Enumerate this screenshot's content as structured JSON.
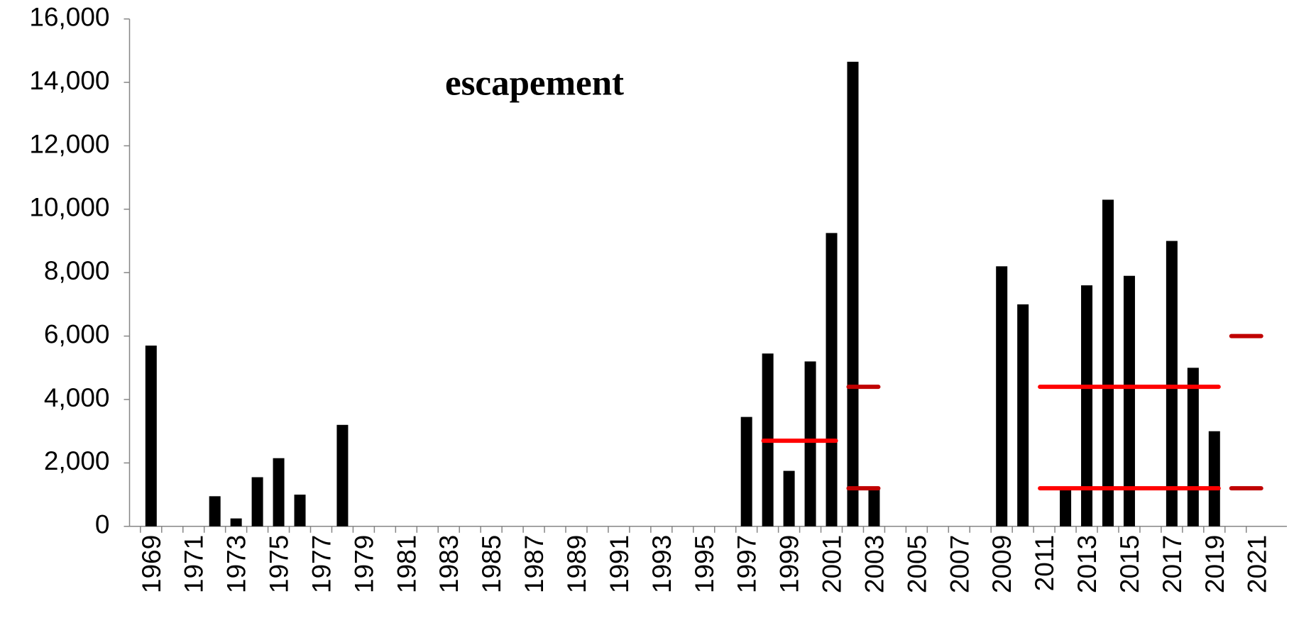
{
  "chart_data": {
    "type": "bar",
    "annotation": "escapement",
    "categories": [
      "1969",
      null,
      "1971",
      null,
      "1973",
      null,
      "1975",
      null,
      "1977",
      null,
      "1979",
      null,
      "1981",
      null,
      "1983",
      null,
      "1985",
      null,
      "1987",
      null,
      "1989",
      null,
      "1991",
      null,
      "1993",
      null,
      "1995",
      null,
      "1997",
      null,
      "1999",
      null,
      "2001",
      null,
      "2003",
      null,
      "2005",
      null,
      "2007",
      null,
      "2009",
      null,
      "2011",
      null,
      "2013",
      null,
      "2015",
      null,
      "2017",
      null,
      "2019",
      null,
      "2021"
    ],
    "values": [
      5700,
      null,
      null,
      950,
      250,
      1550,
      2150,
      1000,
      null,
      3200,
      null,
      null,
      null,
      null,
      null,
      null,
      null,
      null,
      null,
      null,
      null,
      null,
      null,
      null,
      null,
      null,
      null,
      null,
      3450,
      5450,
      1750,
      5200,
      9250,
      14650,
      1250,
      null,
      null,
      null,
      null,
      null,
      8200,
      7000,
      null,
      1200,
      7600,
      10300,
      7900,
      null,
      9000,
      5000,
      3000,
      null,
      null
    ],
    "color": "#000000",
    "goal_lines": [
      {
        "x_start": 1998,
        "x_end": 2001,
        "value": 2700,
        "color": "#ff0000"
      },
      {
        "x_start": 2002,
        "x_end": 2003,
        "value": 4400,
        "color": "#c00000"
      },
      {
        "x_start": 2002,
        "x_end": 2003,
        "value": 1200,
        "color": "#c00000"
      },
      {
        "x_start": 2011,
        "x_end": 2019,
        "value": 4400,
        "color": "#ff0000"
      },
      {
        "x_start": 2011,
        "x_end": 2019,
        "value": 1200,
        "color": "#ff0000"
      },
      {
        "x_start": 2020,
        "x_end": 2021,
        "value": 6000,
        "color": "#c00000"
      },
      {
        "x_start": 2020,
        "x_end": 2021,
        "value": 1200,
        "color": "#c00000"
      }
    ],
    "ylim": [
      0,
      16000
    ],
    "yticks": [
      0,
      {
        "value": 2000,
        "label": "2,000"
      },
      {
        "value": 4000,
        "label": "4,000"
      },
      {
        "value": 6000,
        "label": "6,000"
      },
      {
        "value": 8000,
        "label": "8,000"
      },
      {
        "value": 10000,
        "label": "10,000"
      },
      {
        "value": 12000,
        "label": "12,000"
      },
      {
        "value": 14000,
        "label": "14,000"
      },
      {
        "value": 16000,
        "label": "16,000"
      }
    ],
    "grid": false
  }
}
